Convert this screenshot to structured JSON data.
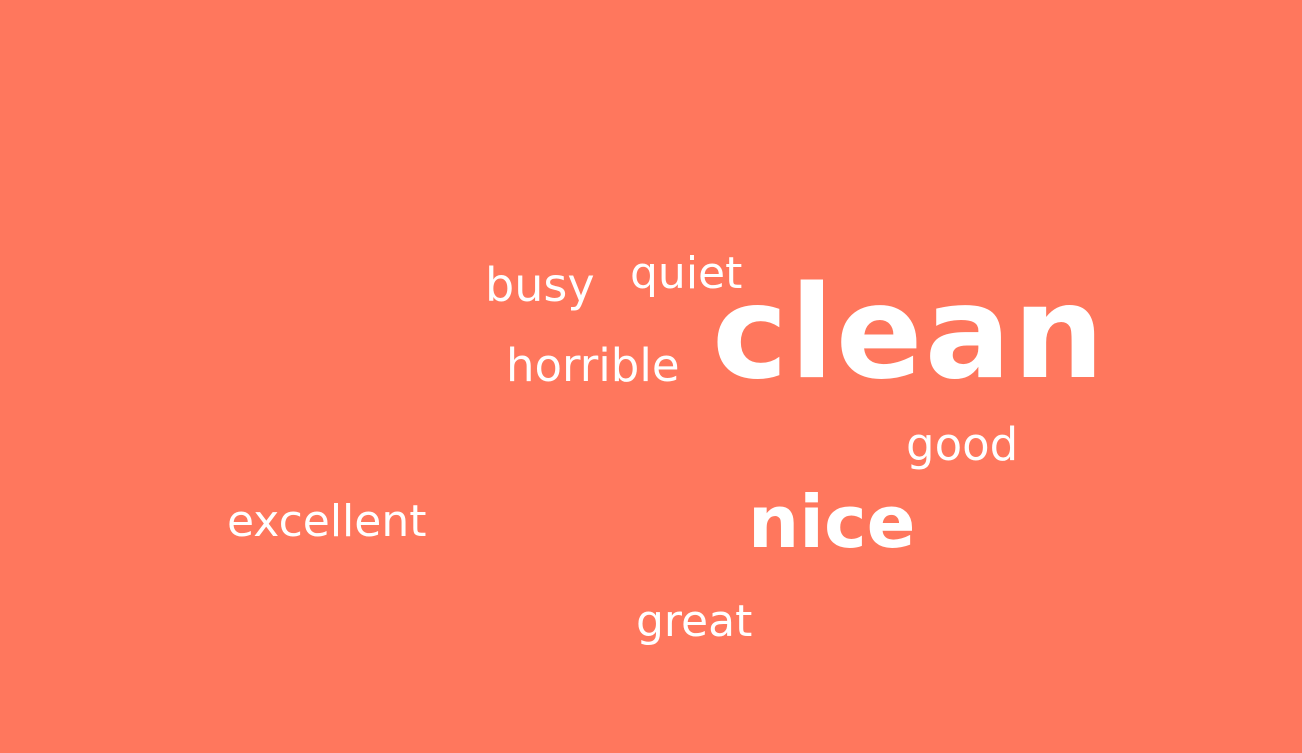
{
  "word_cloud": {
    "background_color": "#ff775d",
    "text_color": "#ffffff",
    "words": {
      "busy": "busy",
      "quiet": "quiet",
      "clean": "clean",
      "horrible": "horrible",
      "good": "good",
      "excellent": "excellent",
      "nice": "nice",
      "great": "great"
    }
  }
}
